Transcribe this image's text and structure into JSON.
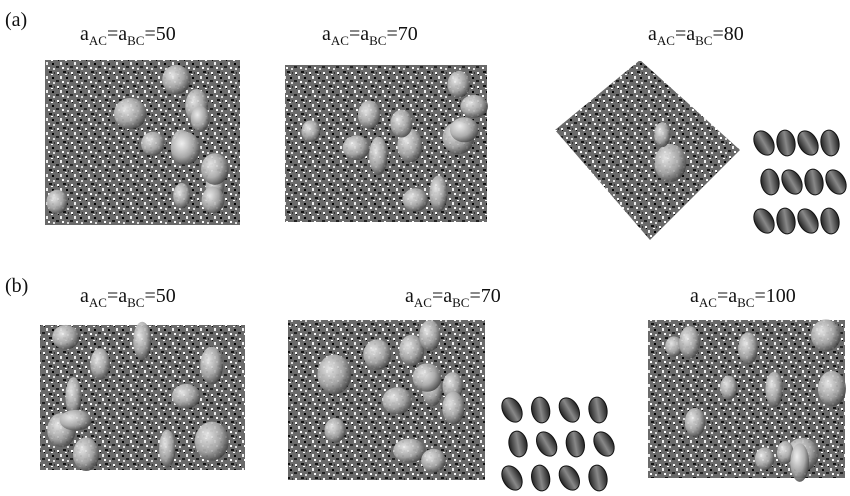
{
  "panels": [
    {
      "tag": "(a)",
      "labels": [
        {
          "base": "a",
          "sub1": "AC",
          "mid": "=a",
          "sub2": "BC",
          "tail": "=50"
        },
        {
          "base": "a",
          "sub1": "AC",
          "mid": "=a",
          "sub2": "BC",
          "tail": "=70"
        },
        {
          "base": "a",
          "sub1": "AC",
          "mid": "=a",
          "sub2": "BC",
          "tail": "=80"
        }
      ]
    },
    {
      "tag": "(b)",
      "labels": [
        {
          "base": "a",
          "sub1": "AC",
          "mid": "=a",
          "sub2": "BC",
          "tail": "=50"
        },
        {
          "base": "a",
          "sub1": "AC",
          "mid": "=a",
          "sub2": "BC",
          "tail": "=70"
        },
        {
          "base": "a",
          "sub1": "AC",
          "mid": "=a",
          "sub2": "BC",
          "tail": "=100"
        }
      ]
    }
  ]
}
